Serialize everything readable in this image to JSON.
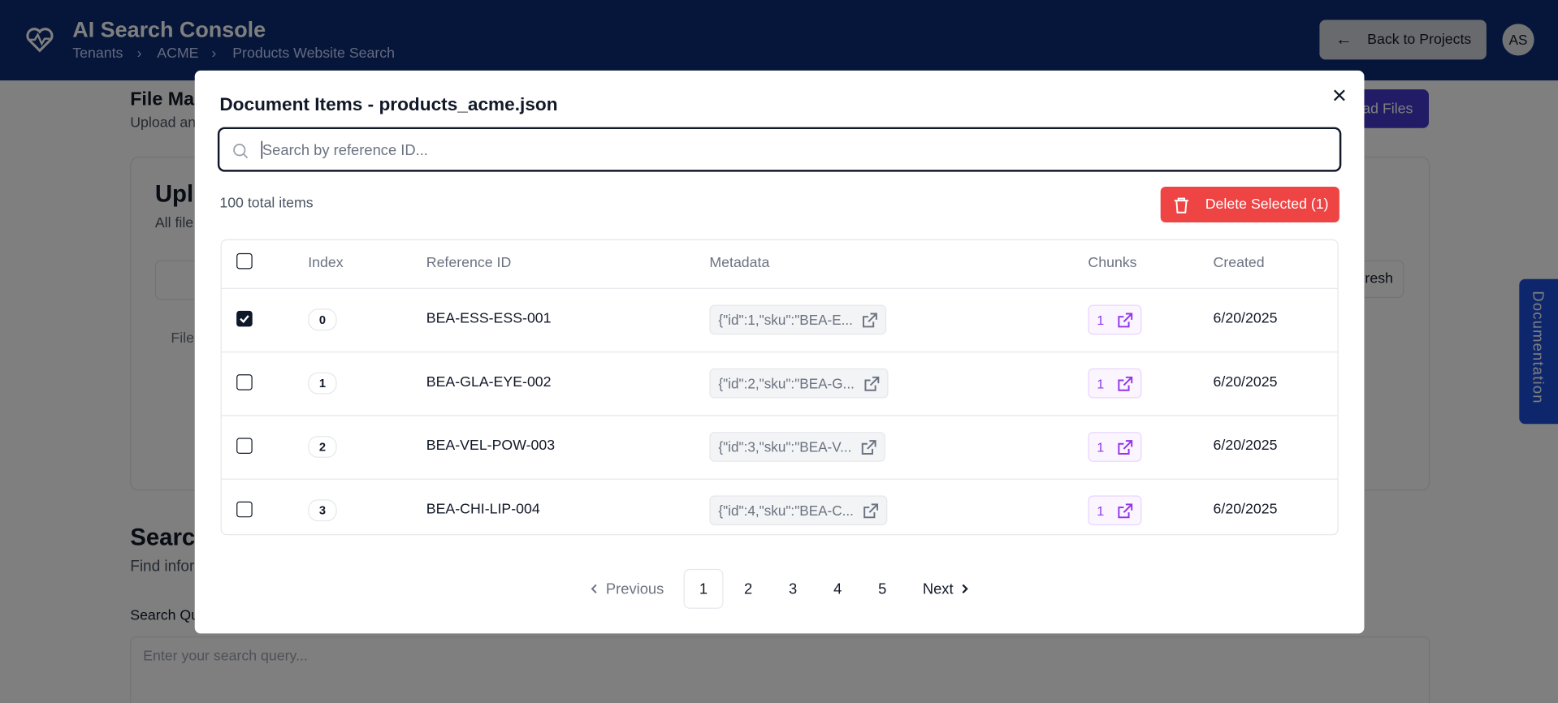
{
  "header": {
    "title": "AI Search Console",
    "breadcrumbs": [
      "Tenants",
      "ACME",
      "Products Website Search"
    ],
    "back_button": "Back to Projects",
    "avatar": "AS"
  },
  "background": {
    "section_title": "File Ma",
    "section_subtitle": "Upload an",
    "upload_button": "ad Files",
    "card_title": "Upl",
    "card_subtitle": "All file",
    "refresh_button": "resh",
    "column_file": "File",
    "search_title": "Searc",
    "search_subtitle": "Find infor",
    "query_label": "Search Qu",
    "query_placeholder": "Enter your search query...",
    "side_tab": "Documentation"
  },
  "modal": {
    "title": "Document Items - products_acme.json",
    "search_placeholder": "Search by reference ID...",
    "total_items": "100 total items",
    "delete_button": "Delete Selected (1)",
    "table": {
      "columns": [
        "Index",
        "Reference ID",
        "Metadata",
        "Chunks",
        "Created"
      ],
      "rows": [
        {
          "checked": true,
          "index": 0,
          "reference_id": "BEA-ESS-ESS-001",
          "metadata": "{\"id\":1,\"sku\":\"BEA-E...",
          "chunks": 1,
          "created": "6/20/2025"
        },
        {
          "checked": false,
          "index": 1,
          "reference_id": "BEA-GLA-EYE-002",
          "metadata": "{\"id\":2,\"sku\":\"BEA-G...",
          "chunks": 1,
          "created": "6/20/2025"
        },
        {
          "checked": false,
          "index": 2,
          "reference_id": "BEA-VEL-POW-003",
          "metadata": "{\"id\":3,\"sku\":\"BEA-V...",
          "chunks": 1,
          "created": "6/20/2025"
        },
        {
          "checked": false,
          "index": 3,
          "reference_id": "BEA-CHI-LIP-004",
          "metadata": "{\"id\":4,\"sku\":\"BEA-C...",
          "chunks": 1,
          "created": "6/20/2025"
        }
      ]
    },
    "pagination": {
      "previous": "Previous",
      "pages": [
        "1",
        "2",
        "3",
        "4",
        "5"
      ],
      "current": "1",
      "next": "Next"
    }
  }
}
